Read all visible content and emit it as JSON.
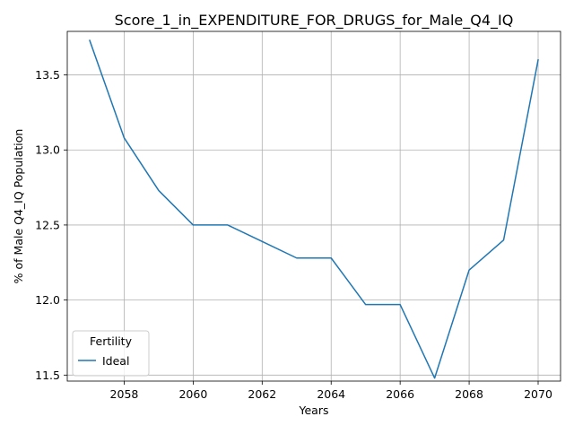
{
  "chart_data": {
    "type": "line",
    "title": "Score_1_in_EXPENDITURE_FOR_DRUGS_for_Male_Q4_IQ",
    "xlabel": "Years",
    "ylabel": "% of Male Q4_IQ Population",
    "xlim": [
      2056.35,
      2070.65
    ],
    "ylim": [
      11.46,
      13.79
    ],
    "x_ticks": [
      2058,
      2060,
      2062,
      2064,
      2066,
      2068,
      2070
    ],
    "y_ticks": [
      11.5,
      12.0,
      12.5,
      13.0,
      13.5
    ],
    "x_tick_labels": [
      "2058",
      "2060",
      "2062",
      "2064",
      "2066",
      "2068",
      "2070"
    ],
    "y_tick_labels": [
      "11.5",
      "12.0",
      "12.5",
      "13.0",
      "13.5"
    ],
    "grid": true,
    "legend": {
      "title": "Fertility",
      "placement": "lower-left"
    },
    "x": [
      2057,
      2058,
      2059,
      2060,
      2061,
      2062,
      2063,
      2064,
      2065,
      2066,
      2067,
      2068,
      2069,
      2070
    ],
    "series": [
      {
        "name": "Ideal",
        "color": "#1f77b4",
        "values": [
          13.73,
          13.08,
          12.73,
          12.5,
          12.5,
          12.39,
          12.28,
          12.28,
          11.97,
          11.97,
          11.48,
          12.2,
          12.4,
          13.6
        ]
      }
    ]
  }
}
